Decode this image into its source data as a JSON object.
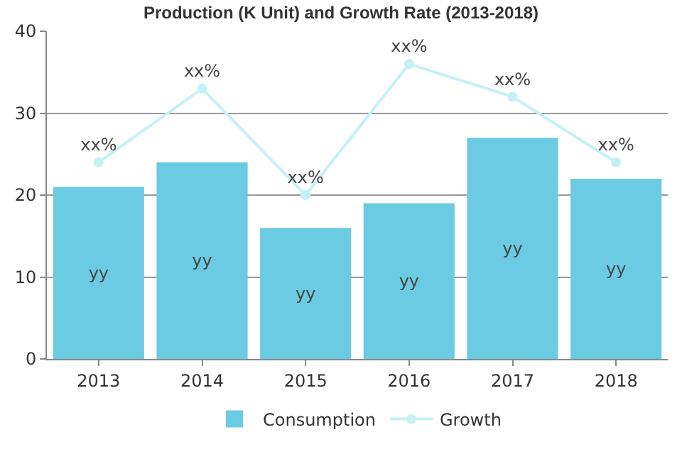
{
  "chart_data": {
    "type": "bar",
    "title": "Production (K Unit) and Growth Rate (2013-2018)",
    "categories": [
      "2013",
      "2014",
      "2015",
      "2016",
      "2017",
      "2018"
    ],
    "series": [
      {
        "name": "Consumption",
        "color": "#6bcbe3",
        "values": [
          21,
          24,
          16,
          19,
          27,
          22
        ],
        "value_labels": [
          "yy",
          "yy",
          "yy",
          "yy",
          "yy",
          "yy"
        ]
      },
      {
        "name": "Growth",
        "type": "line",
        "color": "#c4f1f5",
        "marker": "circle",
        "values": [
          24,
          33,
          20,
          36,
          32,
          24
        ],
        "value_labels": [
          "xx%",
          "xx%",
          "xx%",
          "xx%",
          "xx%",
          "xx%"
        ]
      }
    ],
    "ylim": [
      0,
      40
    ],
    "yticks": [
      0,
      10,
      20,
      30,
      40
    ],
    "grid": "y",
    "legend": "bottom"
  }
}
